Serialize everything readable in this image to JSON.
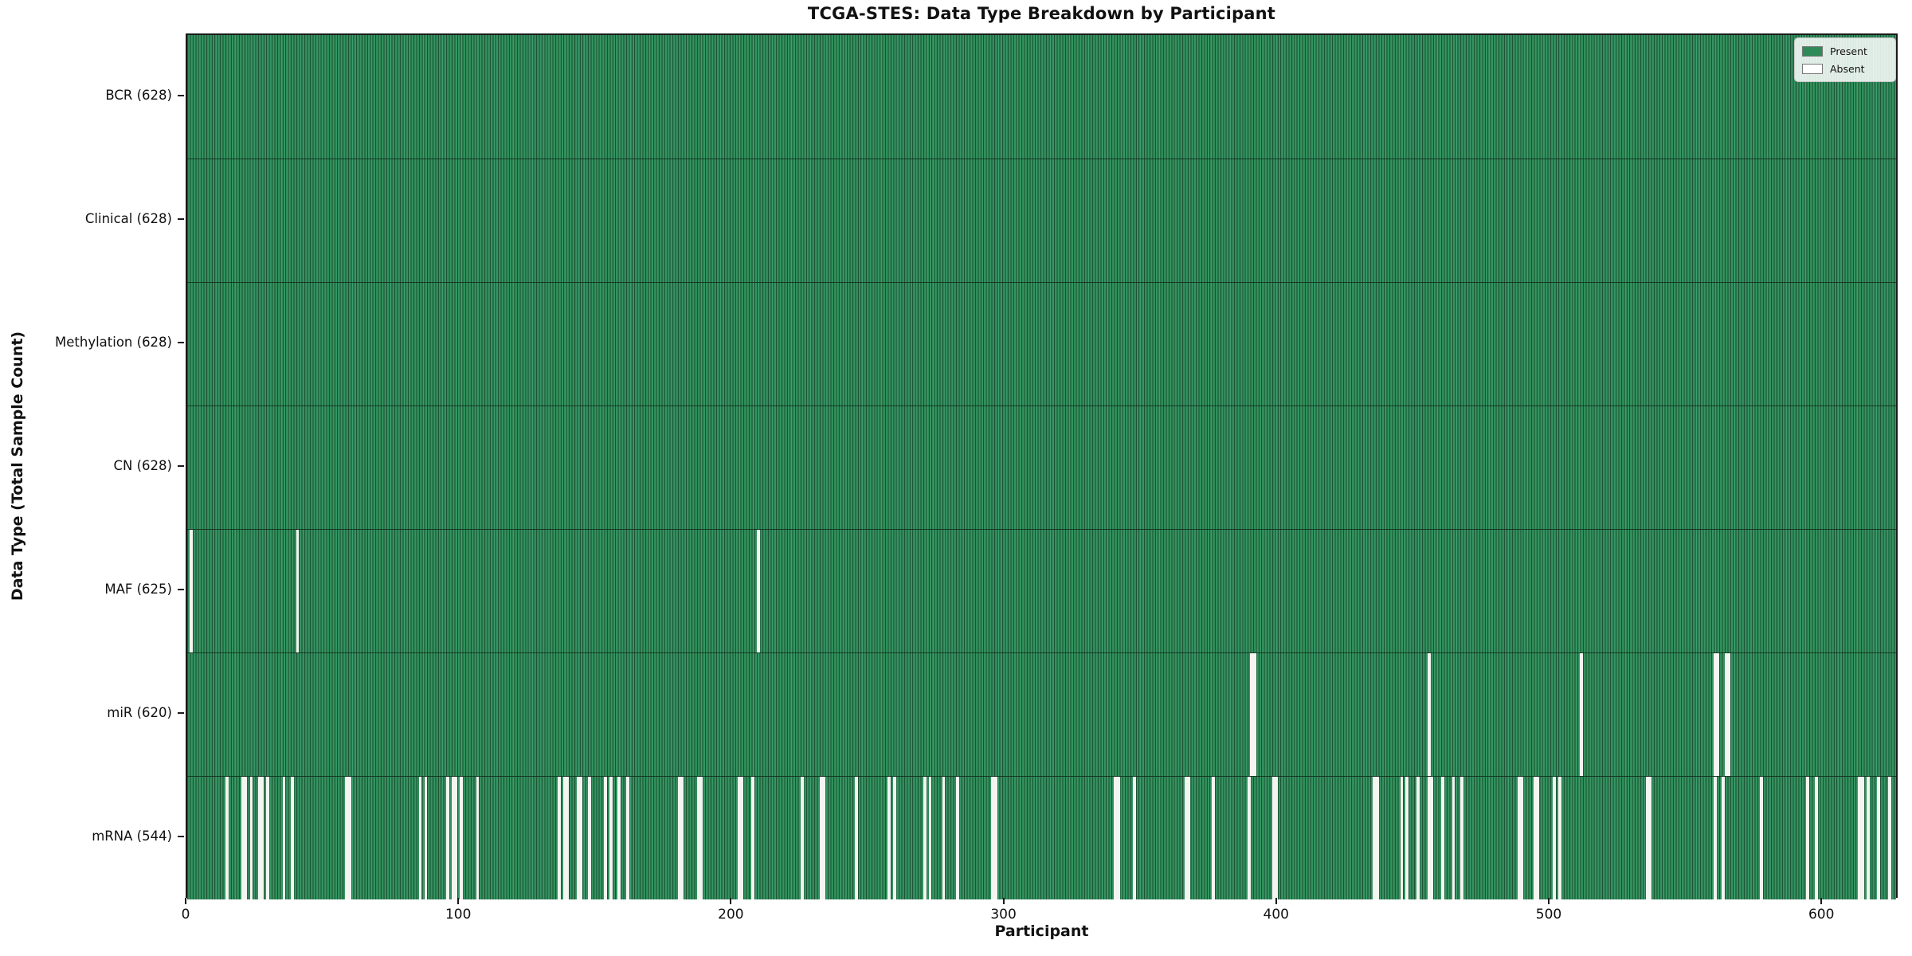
{
  "chart_data": {
    "type": "heatmap",
    "title": "TCGA-STES: Data Type Breakdown by Participant",
    "xlabel": "Participant",
    "ylabel": "Data Type (Total Sample Count)",
    "n_participants": 628,
    "x_ticks": [
      0,
      100,
      200,
      300,
      400,
      500,
      600
    ],
    "xlim": [
      0,
      628
    ],
    "grid": false,
    "legend_position": "upper right",
    "legend": [
      {
        "label": "Present",
        "color": "#2e8b57"
      },
      {
        "label": "Absent",
        "color": "#ffffff"
      }
    ],
    "colors": {
      "present_fill": "#2e8b57",
      "present_edge": "#1d5434",
      "absent_fill": "#f4f4f1",
      "plot_border": "#1a1a1a"
    },
    "rows": [
      {
        "label": "BCR (628)",
        "data_type": "BCR",
        "present_count": 628,
        "absent_participants": []
      },
      {
        "label": "Clinical (628)",
        "data_type": "Clinical",
        "present_count": 628,
        "absent_participants": []
      },
      {
        "label": "Methylation (628)",
        "data_type": "Methylation",
        "present_count": 628,
        "absent_participants": []
      },
      {
        "label": "CN (628)",
        "data_type": "CN",
        "present_count": 628,
        "absent_participants": []
      },
      {
        "label": "MAF (625)",
        "data_type": "MAF",
        "present_count": 625,
        "absent_participants": [
          1,
          40,
          209
        ]
      },
      {
        "label": "miR (620)",
        "data_type": "miR",
        "present_count": 620,
        "absent_participants": [
          390,
          391,
          455,
          511,
          560,
          561,
          564,
          565
        ]
      },
      {
        "label": "mRNA (544)",
        "data_type": "mRNA",
        "present_count": 544,
        "absent_participants": [
          14,
          20,
          21,
          23,
          26,
          27,
          29,
          35,
          38,
          58,
          59,
          85,
          87,
          95,
          97,
          98,
          100,
          106,
          136,
          138,
          139,
          143,
          144,
          147,
          153,
          155,
          158,
          161,
          180,
          181,
          187,
          188,
          202,
          203,
          207,
          225,
          232,
          233,
          245,
          257,
          259,
          270,
          272,
          277,
          282,
          295,
          296,
          340,
          341,
          347,
          366,
          367,
          376,
          389,
          398,
          399,
          435,
          436,
          445,
          447,
          451,
          455,
          456,
          460,
          464,
          467,
          488,
          489,
          494,
          495,
          501,
          503,
          535,
          536,
          560,
          563,
          577,
          594,
          597,
          613,
          614,
          616,
          620,
          624
        ]
      }
    ]
  }
}
